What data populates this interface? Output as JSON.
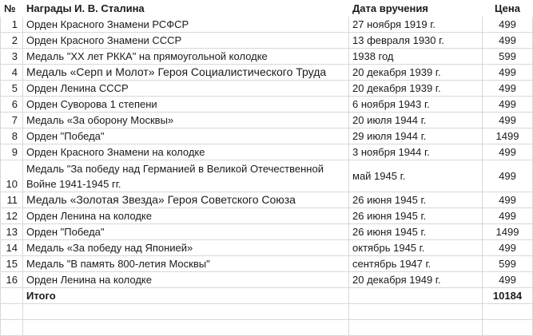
{
  "header": {
    "num": "№",
    "name": "Награды И. В. Сталина",
    "date": "Дата вручения",
    "price": "Цена"
  },
  "rows": [
    {
      "num": "1",
      "name": "Орден Красного Знамени РСФСР",
      "date": "27 ноября 1919 г.",
      "price": "499"
    },
    {
      "num": "2",
      "name": "Орден Красного Знамени СССР",
      "date": "13 февраля 1930 г.",
      "price": "499"
    },
    {
      "num": "3",
      "name": "Медаль \"XX лет РККА\" на прямоугольной колодке",
      "date": "1938 год",
      "price": "599"
    },
    {
      "num": "4",
      "name": "Медаль «Серп и Молот» Героя Социалистического Труда",
      "date": "20 декабря 1939 г.",
      "price": "499"
    },
    {
      "num": "5",
      "name": "Орден Ленина СССР",
      "date": "20 декабря 1939 г.",
      "price": "499"
    },
    {
      "num": "6",
      "name": "Орден Суворова 1 степени",
      "date": "6 ноября 1943 г.",
      "price": "499"
    },
    {
      "num": "7",
      "name": "Медаль «За оборону Москвы»",
      "date": "20 июля 1944 г.",
      "price": "499"
    },
    {
      "num": "8",
      "name": "Орден \"Победа\"",
      "date": "29 июля 1944 г.",
      "price": "1499"
    },
    {
      "num": "9",
      "name": "Орден Красного Знамени на колодке",
      "date": "3 ноября 1944 г.",
      "price": "499"
    },
    {
      "num": "10",
      "name": "Медаль \"За победу над Германией в Великой Отечественной Войне 1941-1945 гг.",
      "date": "май 1945 г.",
      "price": "499"
    },
    {
      "num": "11",
      "name": "Медаль «Золотая Звезда» Героя Советского Союза",
      "date": "26 июня 1945 г.",
      "price": "499"
    },
    {
      "num": "12",
      "name": "Орден Ленина на колодке",
      "date": "26 июня 1945 г.",
      "price": "499"
    },
    {
      "num": "13",
      "name": "Орден \"Победа\"",
      "date": "26 июня 1945 г.",
      "price": "1499"
    },
    {
      "num": "14",
      "name": "Медаль «За победу над Японией»",
      "date": "октябрь 1945 г.",
      "price": "499"
    },
    {
      "num": "15",
      "name": "Медаль \"В память 800-летия Москвы\"",
      "date": "сентябрь 1947 г.",
      "price": "599"
    },
    {
      "num": "16",
      "name": "Орден Ленина на колодке",
      "date": "20 декабря 1949 г.",
      "price": "499"
    }
  ],
  "total": {
    "label": "Итого",
    "price": "10184"
  }
}
